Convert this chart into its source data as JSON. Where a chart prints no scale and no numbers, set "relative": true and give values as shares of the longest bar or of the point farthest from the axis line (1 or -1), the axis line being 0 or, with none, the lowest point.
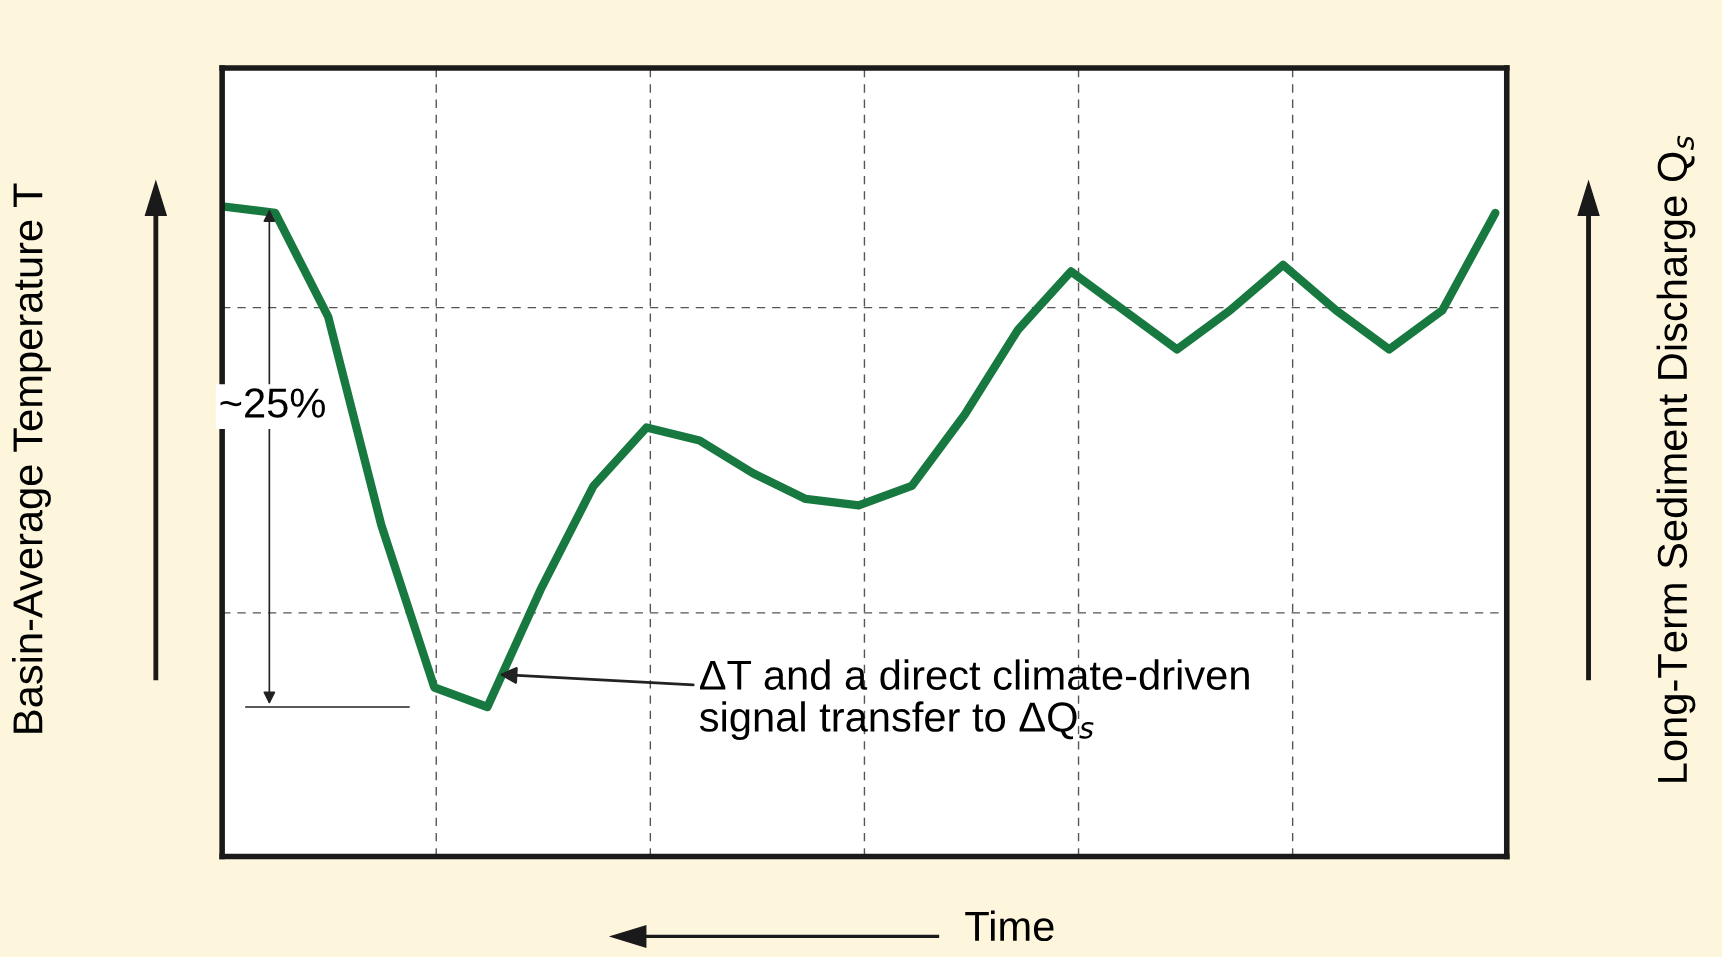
{
  "chart_data": {
    "type": "line",
    "relative": true,
    "xlabel": "Time",
    "ylabel": "Basin-Average Temperature T",
    "y2label": "Long-Term Sediment Discharge Q$_{s}$",
    "categories": [
      null,
      null,
      null,
      null,
      null,
      null,
      null,
      null,
      null,
      null,
      null,
      null,
      null,
      null,
      null,
      null,
      null,
      null,
      null,
      null,
      null,
      null,
      null,
      null,
      null
    ],
    "series": [
      {
        "color": "#17793f",
        "values": [
          1.0,
          0.99,
          0.83,
          0.51,
          0.26,
          0.23,
          0.41,
          0.57,
          0.66,
          0.64,
          0.59,
          0.55,
          0.54,
          0.57,
          0.68,
          0.81,
          0.9,
          0.84,
          0.78,
          0.84,
          0.91,
          0.84,
          0.78,
          0.84,
          0.99
        ]
      }
    ],
    "annotations": [
      "~25%",
      "ΔT and a direct climate-driven\nsignal transfer to ΔQ$_{s}$"
    ],
    "grid": true,
    "legend": false,
    "tick_labels": false
  }
}
